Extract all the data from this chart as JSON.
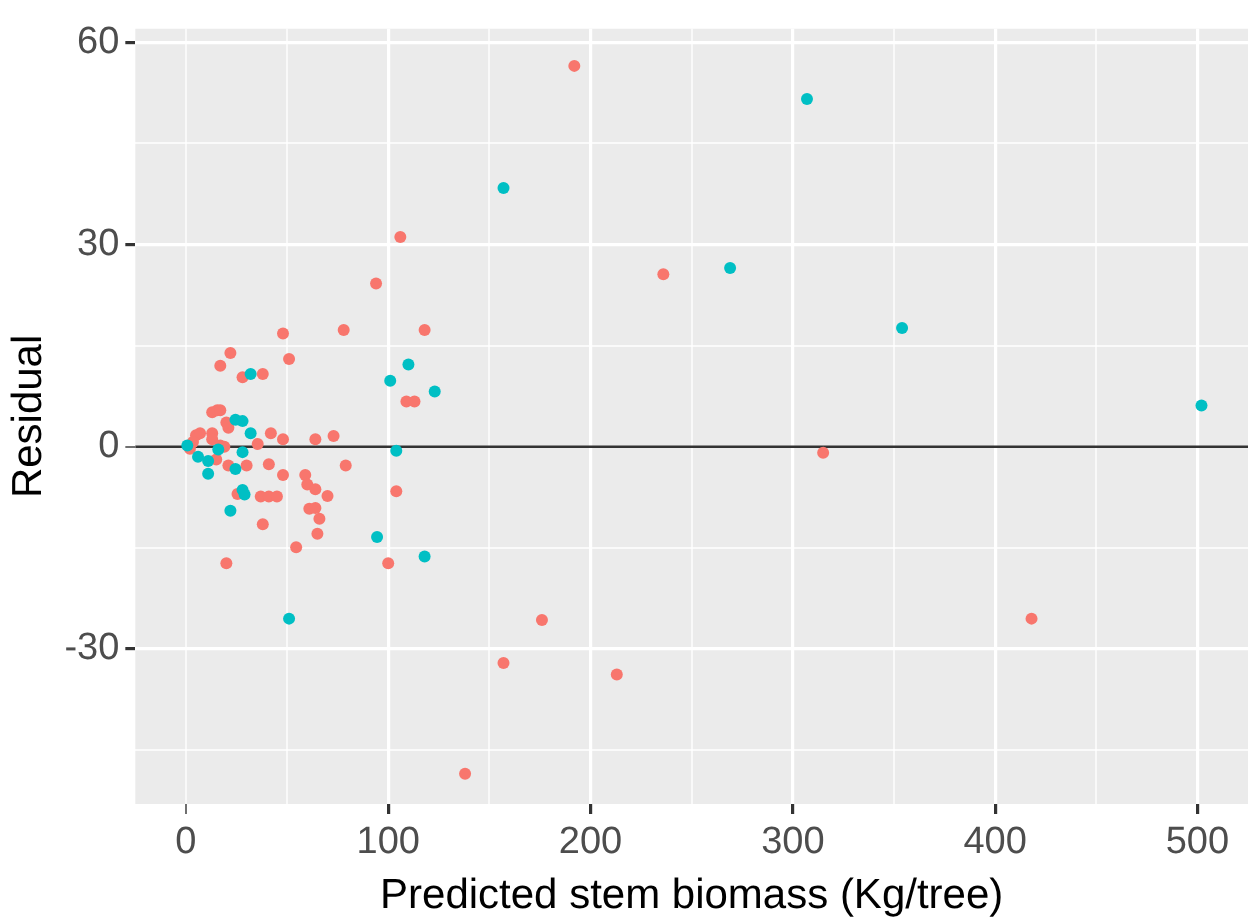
{
  "chart_data": {
    "type": "scatter",
    "xlabel": "Predicted stem biomass (Kg/tree)",
    "ylabel": "Residual",
    "xlim": [
      -25,
      525
    ],
    "ylim": [
      -53,
      62
    ],
    "xticks": [
      0,
      {
        "value": 50,
        "label": null
      },
      100,
      {
        "value": 150,
        "label": null
      },
      200,
      {
        "value": 250,
        "label": null
      },
      300,
      {
        "value": 350,
        "label": null
      },
      400,
      {
        "value": 450,
        "label": null
      },
      500
    ],
    "yticks": [
      {
        "value": -45,
        "label": null
      },
      -30,
      {
        "value": -15,
        "label": null
      },
      0,
      {
        "value": 15,
        "label": null
      },
      30,
      {
        "value": 45,
        "label": null
      },
      60
    ],
    "grid": true,
    "legend": false,
    "marker": "circle",
    "ref_lines": [
      {
        "axis": "y",
        "value": 0,
        "color": "#333333"
      }
    ],
    "series": [
      {
        "color": "#f8766d",
        "x": [
          192,
          106,
          94,
          236,
          48,
          78,
          118,
          22,
          51,
          17,
          28,
          38,
          109,
          113,
          13,
          15.5,
          17,
          21,
          20,
          5,
          7,
          13,
          13,
          3.5,
          2,
          42,
          48,
          64,
          73,
          35.5,
          17,
          19,
          79,
          30,
          21,
          41,
          15,
          48,
          59,
          60,
          64,
          70,
          104,
          25.5,
          37,
          41,
          45,
          61,
          64,
          66,
          65,
          38,
          54.5,
          20,
          100,
          176,
          418,
          157,
          213,
          138,
          315
        ],
        "values": [
          56.5,
          31.1,
          24.2,
          25.6,
          16.8,
          17.3,
          17.3,
          13.9,
          13,
          12,
          10.3,
          10.8,
          6.7,
          6.7,
          5.1,
          5.4,
          5.4,
          2.8,
          3.6,
          1.7,
          2,
          2,
          1.1,
          0.7,
          -0.3,
          2,
          1.1,
          1.1,
          1.6,
          0.4,
          0.2,
          0,
          -2.8,
          -2.8,
          -2.8,
          -2.6,
          -1.9,
          -4.2,
          -4.2,
          -5.6,
          -6.3,
          -7.3,
          -6.6,
          -7,
          -7.4,
          -7.4,
          -7.4,
          -9.2,
          -9.1,
          -10.7,
          -12.9,
          -11.5,
          -14.9,
          -17.3,
          -17.3,
          -25.7,
          -25.5,
          -32.1,
          -33.8,
          -48.5,
          -0.9
        ]
      },
      {
        "color": "#00bfc4",
        "x": [
          307,
          157,
          269,
          354,
          502,
          110,
          101,
          123,
          32,
          24.5,
          28,
          32,
          0.7,
          6,
          11,
          11,
          16,
          28,
          24.5,
          104,
          28,
          29,
          22,
          94.5,
          118,
          51
        ],
        "values": [
          51.6,
          38.4,
          26.5,
          17.6,
          6.1,
          12.2,
          9.8,
          8.2,
          10.8,
          4,
          3.8,
          2,
          0.2,
          -1.5,
          -2.1,
          -4,
          -0.4,
          -0.8,
          -3.3,
          -0.6,
          -6.4,
          -7.1,
          -9.5,
          -13.4,
          -16.3,
          -25.5
        ]
      }
    ]
  }
}
